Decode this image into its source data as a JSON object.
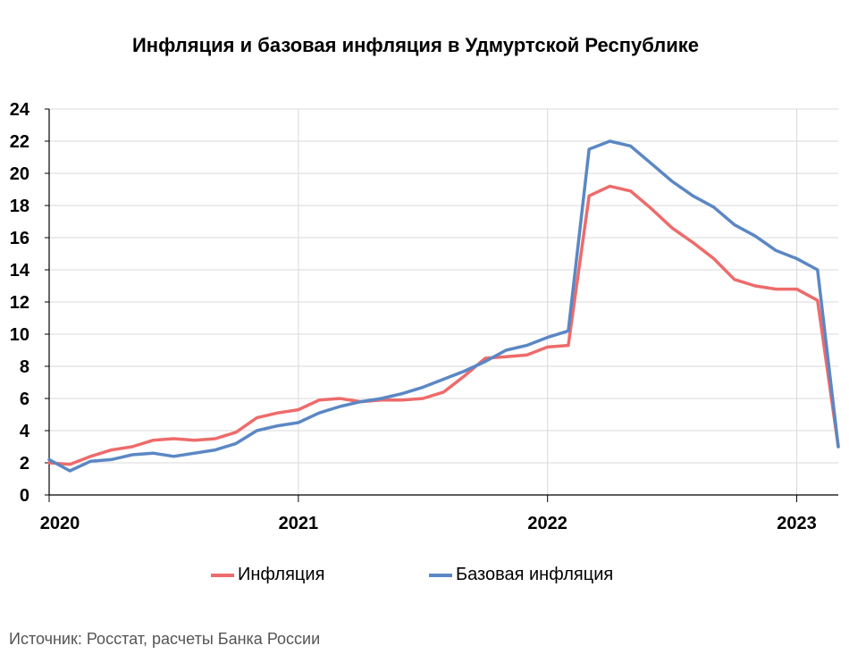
{
  "chart_data": {
    "type": "line",
    "title": "Инфляция и базовая инфляция в Удмуртской Республике",
    "xlabel": "",
    "ylabel": "",
    "ylim": [
      0,
      24
    ],
    "yticks": [
      "0",
      "2",
      "4",
      "6",
      "8",
      "10",
      "12",
      "14",
      "16",
      "18",
      "20",
      "22",
      "24"
    ],
    "xticks": [
      "2020",
      "2021",
      "2022",
      "2023"
    ],
    "x": [
      "2020-01",
      "2020-02",
      "2020-03",
      "2020-04",
      "2020-05",
      "2020-06",
      "2020-07",
      "2020-08",
      "2020-09",
      "2020-10",
      "2020-11",
      "2020-12",
      "2021-01",
      "2021-02",
      "2021-03",
      "2021-04",
      "2021-05",
      "2021-06",
      "2021-07",
      "2021-08",
      "2021-09",
      "2021-10",
      "2021-11",
      "2021-12",
      "2022-01",
      "2022-02",
      "2022-03",
      "2022-04",
      "2022-05",
      "2022-06",
      "2022-07",
      "2022-08",
      "2022-09",
      "2022-10",
      "2022-11",
      "2022-12",
      "2023-01",
      "2023-02",
      "2023-03"
    ],
    "grid": true,
    "legend_position": "bottom",
    "series": [
      {
        "name": "Инфляция",
        "color": "#EE6B6B",
        "values": [
          2.0,
          1.9,
          2.4,
          2.8,
          3.0,
          3.4,
          3.5,
          3.4,
          3.5,
          3.9,
          4.8,
          5.1,
          5.3,
          5.9,
          6.0,
          5.8,
          5.9,
          5.9,
          6.0,
          6.4,
          7.4,
          8.5,
          8.6,
          8.7,
          9.2,
          9.3,
          18.6,
          19.2,
          18.9,
          17.8,
          16.6,
          15.7,
          14.7,
          13.4,
          13.0,
          12.8,
          12.8,
          12.1,
          3.0
        ]
      },
      {
        "name": "Базовая инфляция",
        "color": "#5B87C4",
        "values": [
          2.2,
          1.5,
          2.1,
          2.2,
          2.5,
          2.6,
          2.4,
          2.6,
          2.8,
          3.2,
          4.0,
          4.3,
          4.5,
          5.1,
          5.5,
          5.8,
          6.0,
          6.3,
          6.7,
          7.2,
          7.7,
          8.3,
          9.0,
          9.3,
          9.8,
          10.2,
          21.5,
          22.0,
          21.7,
          20.6,
          19.5,
          18.6,
          17.9,
          16.8,
          16.1,
          15.2,
          14.7,
          14.0,
          3.0
        ]
      }
    ]
  },
  "legend": {
    "item1": "Инфляция",
    "item2": "Базовая инфляция"
  },
  "source_note": "Источник: Росстат, расчеты Банка России"
}
